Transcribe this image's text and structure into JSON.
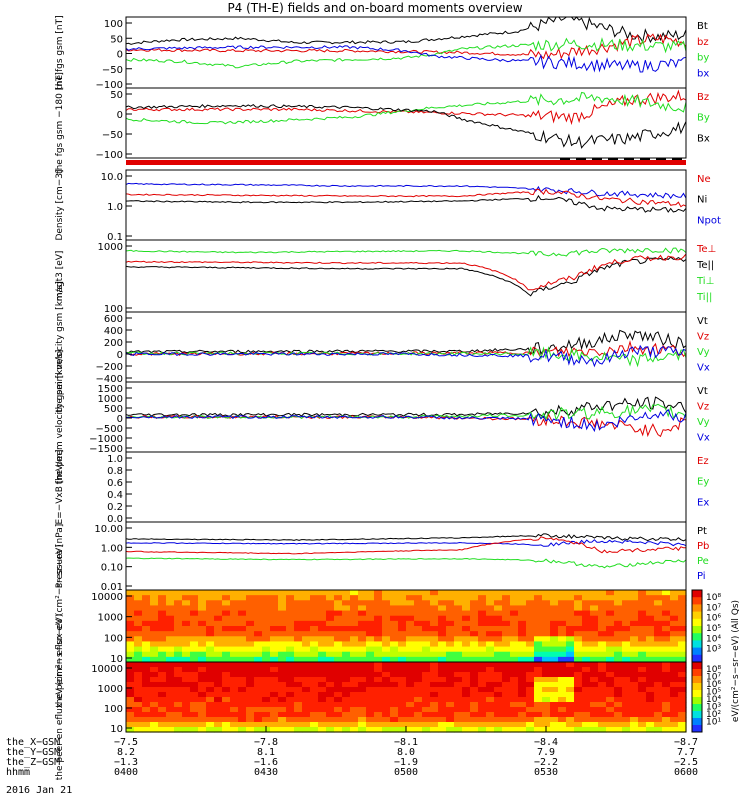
{
  "title": "P4 (TH-E) fields and on-board moments overview",
  "date": "2016 Jan 21",
  "colors": {
    "black": "#000000",
    "red": "#e00000",
    "green": "#22dd22",
    "blue": "#0000e0"
  },
  "chart_data": [
    {
      "type": "line",
      "ylabel": "the fgs gsm [nT]",
      "yticks": [
        "100",
        "50",
        "0",
        "−50",
        "−100"
      ],
      "ylim": [
        -100,
        100
      ],
      "legend": [
        {
          "name": "Bt",
          "color": "#000000"
        },
        {
          "name": "bz",
          "color": "#e00000"
        },
        {
          "name": "by",
          "color": "#22dd22"
        },
        {
          "name": "bx",
          "color": "#0000e0"
        }
      ],
      "series": [
        {
          "name": "Bt",
          "x": [
            0,
            0.08,
            0.2,
            0.25,
            0.3,
            0.5,
            0.7,
            0.78,
            0.8,
            0.85,
            0.9,
            0.95,
            1
          ],
          "y": [
            25,
            35,
            40,
            35,
            28,
            30,
            60,
            95,
            90,
            70,
            50,
            45,
            50
          ]
        },
        {
          "name": "bz",
          "x": [
            0,
            0.2,
            0.4,
            0.6,
            0.75,
            0.85,
            0.9,
            0.95,
            1
          ],
          "y": [
            8,
            5,
            5,
            0,
            -8,
            15,
            30,
            40,
            30
          ]
        },
        {
          "name": "by",
          "x": [
            0,
            0.1,
            0.2,
            0.3,
            0.5,
            0.55,
            0.6,
            0.7,
            0.8,
            0.9,
            1
          ],
          "y": [
            -20,
            -25,
            -40,
            -25,
            -15,
            -5,
            10,
            20,
            25,
            20,
            15
          ]
        },
        {
          "name": "bx",
          "x": [
            0,
            0.2,
            0.4,
            0.5,
            0.55,
            0.65,
            0.8,
            0.9,
            1
          ],
          "y": [
            10,
            15,
            15,
            5,
            -10,
            -20,
            -30,
            -40,
            -30
          ]
        }
      ]
    },
    {
      "type": "line",
      "ylabel": "the fgs gsm −180 [nT]",
      "yticks": [
        "50",
        "0",
        "−50",
        "−100"
      ],
      "ylim": [
        -120,
        60
      ],
      "legend": [
        {
          "name": "Bz",
          "color": "#e00000"
        },
        {
          "name": "By",
          "color": "#22dd22"
        },
        {
          "name": "Bx",
          "color": "#000000"
        }
      ],
      "series": [
        {
          "name": "Bz",
          "x": [
            0,
            0.3,
            0.6,
            0.8,
            0.9,
            1
          ],
          "y": [
            5,
            5,
            -5,
            -15,
            30,
            40
          ]
        },
        {
          "name": "By",
          "x": [
            0,
            0.15,
            0.25,
            0.4,
            0.55,
            0.7,
            0.85,
            1
          ],
          "y": [
            -20,
            -30,
            -25,
            -15,
            10,
            25,
            35,
            10
          ]
        },
        {
          "name": "Bx",
          "x": [
            0,
            0.2,
            0.4,
            0.55,
            0.6,
            0.7,
            0.8,
            0.9,
            1
          ],
          "y": [
            10,
            15,
            10,
            0,
            -20,
            -50,
            -80,
            -70,
            -40
          ]
        }
      ]
    },
    {
      "type": "line",
      "ylabel": "Density [cm−3]",
      "log": true,
      "yticks": [
        "10.0",
        "1.0",
        "0.1"
      ],
      "ylim": [
        0.1,
        10
      ],
      "legend": [
        {
          "name": "Ne",
          "color": "#e00000"
        },
        {
          "name": "Ni",
          "color": "#000000"
        },
        {
          "name": "Npot",
          "color": "#0000e0"
        }
      ],
      "series": [
        {
          "name": "Npot",
          "x": [
            0,
            0.2,
            0.4,
            0.6,
            0.75,
            0.85,
            1
          ],
          "y": [
            4,
            3.8,
            3.5,
            3.5,
            2.8,
            2.2,
            1.8
          ]
        },
        {
          "name": "Ne",
          "x": [
            0,
            0.2,
            0.4,
            0.6,
            0.75,
            0.85,
            1
          ],
          "y": [
            2,
            1.9,
            1.8,
            1.8,
            2.5,
            1.5,
            1.0
          ]
        },
        {
          "name": "Ni",
          "x": [
            0,
            0.2,
            0.4,
            0.6,
            0.75,
            0.85,
            1
          ],
          "y": [
            1.3,
            1.2,
            1.2,
            1.3,
            1.6,
            0.8,
            0.7
          ]
        }
      ]
    },
    {
      "type": "line",
      "ylabel": "magt3 [eV]",
      "log": true,
      "yticks": [
        "1000",
        "100"
      ],
      "ylim": [
        100,
        10000
      ],
      "legend": [
        {
          "name": "Te⊥",
          "color": "#e00000"
        },
        {
          "name": "Te||",
          "color": "#000000"
        },
        {
          "name": "Ti⊥",
          "color": "#22dd22"
        },
        {
          "name": "Ti||",
          "color": "#22dd22"
        }
      ],
      "series": [
        {
          "name": "Ti⊥",
          "x": [
            0,
            0.2,
            0.4,
            0.6,
            0.75,
            0.85,
            0.95,
            1
          ],
          "y": [
            5000,
            4500,
            4800,
            5000,
            4000,
            5000,
            5500,
            5000
          ]
        },
        {
          "name": "Te||",
          "x": [
            0,
            0.2,
            0.4,
            0.6,
            0.72,
            0.8,
            0.9,
            1
          ],
          "y": [
            1800,
            1700,
            1600,
            1600,
            300,
            700,
            2500,
            3000
          ]
        },
        {
          "name": "Te⊥",
          "x": [
            0,
            0.2,
            0.4,
            0.6,
            0.72,
            0.8,
            0.9,
            1
          ],
          "y": [
            2500,
            2400,
            2300,
            2300,
            400,
            900,
            3000,
            3500
          ]
        }
      ]
    },
    {
      "type": "line",
      "ylabel": "the peim velocity gsm [km/s]",
      "yticks": [
        "600",
        "400",
        "200",
        "0",
        "−200",
        "−400"
      ],
      "ylim": [
        -400,
        600
      ],
      "legend": [
        {
          "name": "Vt",
          "color": "#000000"
        },
        {
          "name": "Vz",
          "color": "#e00000"
        },
        {
          "name": "Vy",
          "color": "#22dd22"
        },
        {
          "name": "Vx",
          "color": "#0000e0"
        }
      ],
      "series": [
        {
          "name": "Vt",
          "x": [
            0,
            0.3,
            0.6,
            0.75,
            0.85,
            0.9,
            1
          ],
          "y": [
            30,
            40,
            40,
            80,
            200,
            300,
            150
          ]
        },
        {
          "name": "Vz",
          "x": [
            0,
            0.5,
            0.75,
            0.85,
            0.9,
            1
          ],
          "y": [
            0,
            10,
            20,
            50,
            100,
            50
          ]
        },
        {
          "name": "Vy",
          "x": [
            0,
            0.5,
            0.75,
            0.85,
            0.9,
            1
          ],
          "y": [
            10,
            5,
            0,
            -50,
            -100,
            0
          ]
        },
        {
          "name": "Vx",
          "x": [
            0,
            0.5,
            0.75,
            0.85,
            0.9,
            1
          ],
          "y": [
            0,
            0,
            -30,
            -100,
            50,
            20
          ]
        }
      ]
    },
    {
      "type": "line",
      "ylabel": "the peem velocity gsm [km/s]",
      "yticks": [
        "1500",
        "1000",
        "500",
        "0",
        "−500",
        "−1000",
        "−1500"
      ],
      "ylim": [
        -1500,
        1500
      ],
      "legend": [
        {
          "name": "Vt",
          "color": "#000000"
        },
        {
          "name": "Vz",
          "color": "#e00000"
        },
        {
          "name": "Vy",
          "color": "#22dd22"
        },
        {
          "name": "Vx",
          "color": "#0000e0"
        }
      ],
      "series": [
        {
          "name": "Vt",
          "x": [
            0,
            0.3,
            0.6,
            0.75,
            0.85,
            0.95,
            1
          ],
          "y": [
            100,
            100,
            100,
            200,
            500,
            600,
            400
          ]
        },
        {
          "name": "Vz",
          "x": [
            0,
            0.5,
            0.75,
            0.85,
            0.95,
            1
          ],
          "y": [
            0,
            0,
            -100,
            -300,
            -600,
            -200
          ]
        },
        {
          "name": "Vy",
          "x": [
            0,
            0.5,
            0.75,
            0.85,
            0.95,
            1
          ],
          "y": [
            0,
            0,
            100,
            200,
            300,
            100
          ]
        },
        {
          "name": "Vx",
          "x": [
            0,
            0.5,
            0.75,
            0.85,
            0.95,
            1
          ],
          "y": [
            0,
            0,
            -100,
            -400,
            200,
            0
          ]
        }
      ]
    },
    {
      "type": "line",
      "ylabel": "E=−VxB [mV/m]",
      "yticks": [
        "1.0",
        "0.8",
        "0.6",
        "0.4",
        "0.2",
        "0.0"
      ],
      "ylim": [
        0,
        1
      ],
      "legend": [
        {
          "name": "Ez",
          "color": "#e00000"
        },
        {
          "name": "Ey",
          "color": "#22dd22"
        },
        {
          "name": "Ex",
          "color": "#0000e0"
        }
      ],
      "series": []
    },
    {
      "type": "line",
      "ylabel": "Pressure [nPa]",
      "log": true,
      "yticks": [
        "10.00",
        "1.00",
        "0.10",
        "0.01"
      ],
      "ylim": [
        0.01,
        10
      ],
      "legend": [
        {
          "name": "Pt",
          "color": "#000000"
        },
        {
          "name": "Pb",
          "color": "#e00000"
        },
        {
          "name": "Pe",
          "color": "#22dd22"
        },
        {
          "name": "Pi",
          "color": "#0000e0"
        }
      ],
      "series": [
        {
          "name": "Pt",
          "x": [
            0,
            0.3,
            0.6,
            0.75,
            0.85,
            1
          ],
          "y": [
            1.8,
            1.6,
            2.0,
            2.6,
            2.0,
            1.7
          ]
        },
        {
          "name": "Pi",
          "x": [
            0,
            0.3,
            0.6,
            0.75,
            0.85,
            1
          ],
          "y": [
            1.2,
            1.1,
            1.2,
            1.0,
            1.5,
            1.0
          ]
        },
        {
          "name": "Pb",
          "x": [
            0,
            0.3,
            0.6,
            0.75,
            0.85,
            1
          ],
          "y": [
            0.5,
            0.4,
            0.6,
            2.0,
            0.5,
            0.7
          ]
        },
        {
          "name": "Pe",
          "x": [
            0,
            0.3,
            0.6,
            0.75,
            0.85,
            1
          ],
          "y": [
            0.25,
            0.22,
            0.24,
            0.2,
            0.1,
            0.2
          ]
        }
      ]
    },
    {
      "type": "heatmap",
      "ylabel": "the peir en eflux eV (cm²−s−sr−eV)",
      "log": true,
      "yticks": [
        "10000",
        "1000",
        "100",
        "10"
      ],
      "ylim": [
        5,
        20000
      ]
    },
    {
      "type": "heatmap",
      "ylabel": "the peer en eflux eV (cm²−s−sr−eV)",
      "log": true,
      "yticks": [
        "10000",
        "1000",
        "100",
        "10"
      ],
      "ylim": [
        5,
        20000
      ]
    }
  ],
  "colorbar": {
    "label": "eV/(cm²−s−sr−eV) (All Qs)",
    "ticks_top": [
      "10⁸",
      "10⁷",
      "10⁶",
      "10⁵",
      "10⁴",
      "10³"
    ],
    "ticks_bottom": [
      "10⁸",
      "10⁷",
      "10⁶",
      "10⁵",
      "10⁴",
      "10³",
      "10²",
      "10¹"
    ]
  },
  "xaxis": {
    "ticks": [
      "−7.5",
      "−7.8",
      "−8.1",
      "−8.4",
      "−8.7"
    ],
    "rows": [
      {
        "label": "the_X−GSM",
        "values": [
          "−7.5",
          "−7.8",
          "−8.1",
          "−8.4",
          "−8.7"
        ]
      },
      {
        "label": "the_Y−GSM",
        "values": [
          "8.2",
          "8.1",
          "8.0",
          "7.9",
          "7.7"
        ]
      },
      {
        "label": "the_Z−GSM",
        "values": [
          "−1.3",
          "−1.6",
          "−1.9",
          "−2.2",
          "−2.5"
        ]
      },
      {
        "label": "hhmm",
        "values": [
          "0400",
          "0430",
          "0500",
          "0530",
          "0600"
        ]
      }
    ]
  }
}
